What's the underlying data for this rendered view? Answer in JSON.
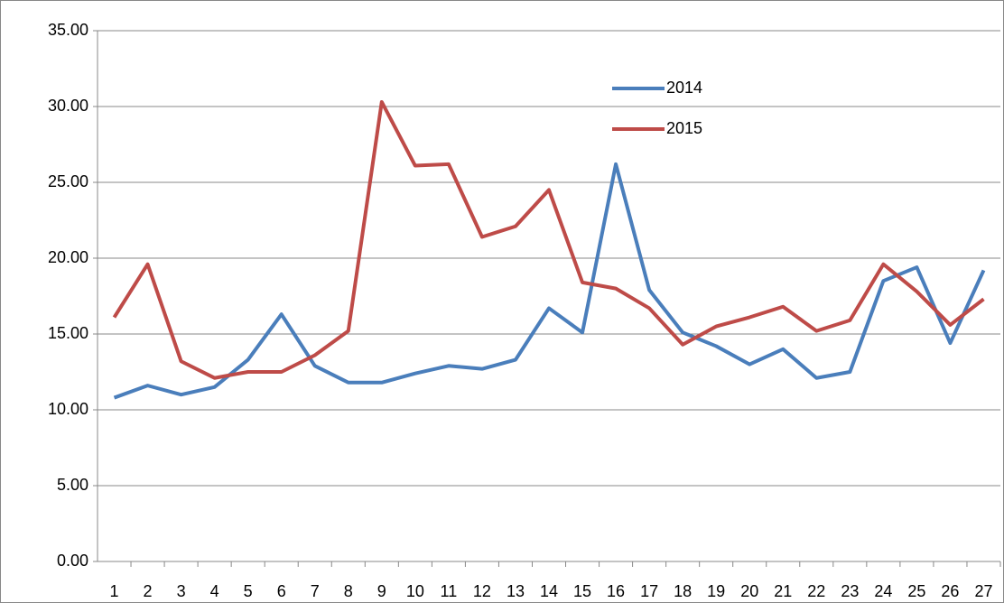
{
  "chart_data": {
    "type": "line",
    "categories": [
      1,
      2,
      3,
      4,
      5,
      6,
      7,
      8,
      9,
      10,
      11,
      12,
      13,
      14,
      15,
      16,
      17,
      18,
      19,
      20,
      21,
      22,
      23,
      24,
      25,
      26,
      27
    ],
    "series": [
      {
        "name": "2014",
        "color": "#4a7ebb",
        "values": [
          10.8,
          11.6,
          11.0,
          11.5,
          13.3,
          16.3,
          12.9,
          11.8,
          11.8,
          12.4,
          12.9,
          12.7,
          13.3,
          16.7,
          15.1,
          26.2,
          17.9,
          15.1,
          14.2,
          13.0,
          14.0,
          12.1,
          12.5,
          18.5,
          19.4,
          14.4,
          19.2
        ]
      },
      {
        "name": "2015",
        "color": "#be4b48",
        "values": [
          16.1,
          19.6,
          13.2,
          12.1,
          12.5,
          12.5,
          13.6,
          15.2,
          30.3,
          26.1,
          26.2,
          21.4,
          22.1,
          24.5,
          18.4,
          18.0,
          16.7,
          14.3,
          15.5,
          16.1,
          16.8,
          15.2,
          15.9,
          19.6,
          17.8,
          15.6,
          17.3
        ]
      }
    ],
    "ylim": [
      0,
      35
    ],
    "yticks": [
      {
        "value": 0,
        "label": "0.00"
      },
      {
        "value": 5,
        "label": "5.00"
      },
      {
        "value": 10,
        "label": "10.00"
      },
      {
        "value": 15,
        "label": "15.00"
      },
      {
        "value": 20,
        "label": "20.00"
      },
      {
        "value": 25,
        "label": "25.00"
      },
      {
        "value": 30,
        "label": "30.00"
      },
      {
        "value": 35,
        "label": "35.00"
      }
    ],
    "grid": true,
    "legend": "top-right"
  }
}
